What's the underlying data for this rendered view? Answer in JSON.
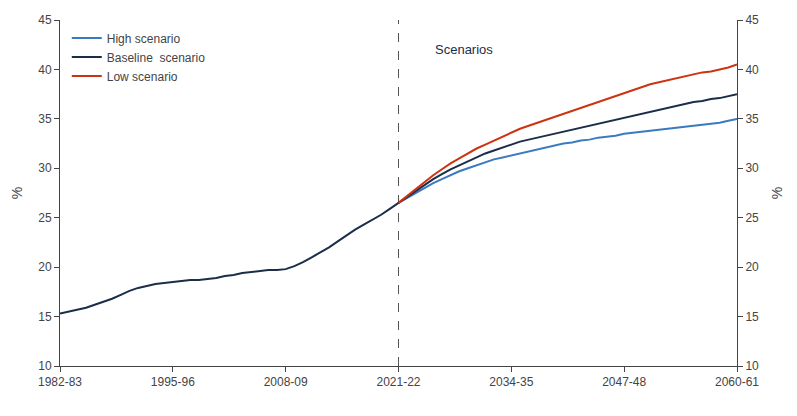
{
  "chart_data": {
    "type": "line",
    "ylabel": "%",
    "y2label": "%",
    "xlim": [
      1982.5,
      2060.5
    ],
    "xticks": [
      {
        "value": 1982.5,
        "label": "1982-83"
      },
      {
        "value": 1995.5,
        "label": "1995-96"
      },
      {
        "value": 2008.5,
        "label": "2008-09"
      },
      {
        "value": 2021.5,
        "label": "2021-22"
      },
      {
        "value": 2034.5,
        "label": "2034-35"
      },
      {
        "value": 2047.5,
        "label": "2047-48"
      },
      {
        "value": 2060.5,
        "label": "2060-61"
      }
    ],
    "ylim": [
      10,
      45
    ],
    "yticks": [
      10,
      15,
      20,
      25,
      30,
      35,
      40,
      45
    ],
    "y2lim": [
      10,
      45
    ],
    "y2ticks": [
      10,
      15,
      20,
      25,
      30,
      35,
      40,
      45
    ],
    "grid": false,
    "legend": "upper left",
    "annotations": [
      {
        "text": "Scenarios",
        "x": 2025.5,
        "y": 43.0,
        "color": "#1a2e4a"
      }
    ],
    "reference_lines": [
      {
        "x": 2021.5,
        "color": "#555555",
        "line_style": "dashed"
      }
    ],
    "series": [
      {
        "color": "#1a2e4a",
        "x": [
          1982.5,
          1983.5,
          1984.5,
          1985.5,
          1986.5,
          1987.5,
          1988.5,
          1989.5,
          1990.5,
          1991.5,
          1992.5,
          1993.5,
          1994.5,
          1995.5,
          1996.5,
          1997.5,
          1998.5,
          1999.5,
          2000.5,
          2001.5,
          2002.5,
          2003.5,
          2004.5,
          2005.5,
          2006.5,
          2007.5,
          2008.5,
          2009.5,
          2010.5,
          2011.5,
          2012.5,
          2013.5,
          2014.5,
          2015.5,
          2016.5,
          2017.5,
          2018.5,
          2019.5,
          2020.5,
          2021.5
        ],
        "values": [
          15.3,
          15.5,
          15.7,
          15.9,
          16.2,
          16.5,
          16.8,
          17.2,
          17.6,
          17.9,
          18.1,
          18.3,
          18.4,
          18.5,
          18.6,
          18.7,
          18.7,
          18.8,
          18.9,
          19.1,
          19.2,
          19.4,
          19.5,
          19.6,
          19.7,
          19.7,
          19.8,
          20.1,
          20.5,
          21.0,
          21.5,
          22.0,
          22.6,
          23.2,
          23.8,
          24.3,
          24.8,
          25.3,
          25.9,
          26.5
        ]
      },
      {
        "name": "High scenario",
        "color": "#3a7abf",
        "x": [
          2021.5,
          2022.5,
          2023.5,
          2024.5,
          2025.5,
          2026.5,
          2027.5,
          2028.5,
          2029.5,
          2030.5,
          2031.5,
          2032.5,
          2033.5,
          2034.5,
          2035.5,
          2036.5,
          2037.5,
          2038.5,
          2039.5,
          2040.5,
          2041.5,
          2042.5,
          2043.5,
          2044.5,
          2045.5,
          2046.5,
          2047.5,
          2048.5,
          2049.5,
          2050.5,
          2051.5,
          2052.5,
          2053.5,
          2054.5,
          2055.5,
          2056.5,
          2057.5,
          2058.5,
          2059.5,
          2060.5
        ],
        "values": [
          26.5,
          27.0,
          27.5,
          28.0,
          28.5,
          28.9,
          29.3,
          29.7,
          30.0,
          30.3,
          30.6,
          30.9,
          31.1,
          31.3,
          31.5,
          31.7,
          31.9,
          32.1,
          32.3,
          32.5,
          32.6,
          32.8,
          32.9,
          33.1,
          33.2,
          33.3,
          33.5,
          33.6,
          33.7,
          33.8,
          33.9,
          34.0,
          34.1,
          34.2,
          34.3,
          34.4,
          34.5,
          34.6,
          34.8,
          35.0
        ]
      },
      {
        "name": "Baseline  scenario",
        "color": "#1a2e4a",
        "x": [
          2021.5,
          2022.5,
          2023.5,
          2024.5,
          2025.5,
          2026.5,
          2027.5,
          2028.5,
          2029.5,
          2030.5,
          2031.5,
          2032.5,
          2033.5,
          2034.5,
          2035.5,
          2036.5,
          2037.5,
          2038.5,
          2039.5,
          2040.5,
          2041.5,
          2042.5,
          2043.5,
          2044.5,
          2045.5,
          2046.5,
          2047.5,
          2048.5,
          2049.5,
          2050.5,
          2051.5,
          2052.5,
          2053.5,
          2054.5,
          2055.5,
          2056.5,
          2057.5,
          2058.5,
          2059.5,
          2060.5
        ],
        "values": [
          26.5,
          27.1,
          27.7,
          28.3,
          28.9,
          29.4,
          29.9,
          30.3,
          30.7,
          31.1,
          31.5,
          31.8,
          32.1,
          32.4,
          32.7,
          32.9,
          33.1,
          33.3,
          33.5,
          33.7,
          33.9,
          34.1,
          34.3,
          34.5,
          34.7,
          34.9,
          35.1,
          35.3,
          35.5,
          35.7,
          35.9,
          36.1,
          36.3,
          36.5,
          36.7,
          36.8,
          37.0,
          37.1,
          37.3,
          37.5
        ]
      },
      {
        "name": "Low scenario",
        "color": "#cc3311",
        "x": [
          2021.5,
          2022.5,
          2023.5,
          2024.5,
          2025.5,
          2026.5,
          2027.5,
          2028.5,
          2029.5,
          2030.5,
          2031.5,
          2032.5,
          2033.5,
          2034.5,
          2035.5,
          2036.5,
          2037.5,
          2038.5,
          2039.5,
          2040.5,
          2041.5,
          2042.5,
          2043.5,
          2044.5,
          2045.5,
          2046.5,
          2047.5,
          2048.5,
          2049.5,
          2050.5,
          2051.5,
          2052.5,
          2053.5,
          2054.5,
          2055.5,
          2056.5,
          2057.5,
          2058.5,
          2059.5,
          2060.5
        ],
        "values": [
          26.5,
          27.2,
          27.9,
          28.6,
          29.3,
          29.9,
          30.5,
          31.0,
          31.5,
          32.0,
          32.4,
          32.8,
          33.2,
          33.6,
          34.0,
          34.3,
          34.6,
          34.9,
          35.2,
          35.5,
          35.8,
          36.1,
          36.4,
          36.7,
          37.0,
          37.3,
          37.6,
          37.9,
          38.2,
          38.5,
          38.7,
          38.9,
          39.1,
          39.3,
          39.5,
          39.7,
          39.8,
          40.0,
          40.2,
          40.5
        ]
      }
    ]
  }
}
